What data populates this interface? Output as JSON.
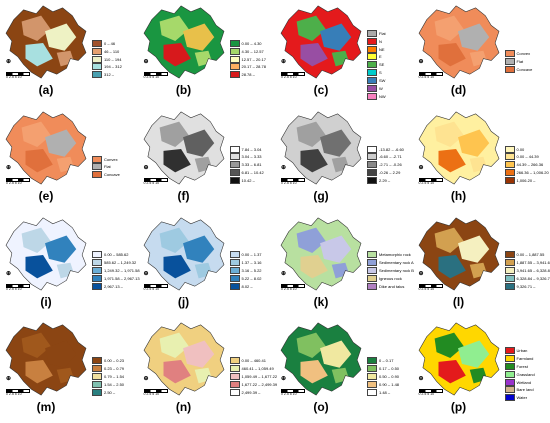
{
  "panels": [
    {
      "letter": "(a)",
      "legend": [
        {
          "label": "0 – 46",
          "color": "#a0522d"
        },
        {
          "label": "46 – 110",
          "color": "#e6a070"
        },
        {
          "label": "110 – 194",
          "color": "#eef0c8"
        },
        {
          "label": "194 – 312",
          "color": "#a8e0e0"
        },
        {
          "label": "312 –",
          "color": "#4aa0b0"
        }
      ],
      "palette": [
        "#8b4513",
        "#d2956b",
        "#eef2c4",
        "#a8e0e0"
      ]
    },
    {
      "letter": "(b)",
      "legend": [
        {
          "label": "0.00 – 4.30",
          "color": "#1a9641"
        },
        {
          "label": "4.30 – 12.57",
          "color": "#a6d96a"
        },
        {
          "label": "12.57 – 20.17",
          "color": "#ffffbf"
        },
        {
          "label": "20.17 – 28.78",
          "color": "#fdae61"
        },
        {
          "label": "28.78 –",
          "color": "#d7191c"
        }
      ],
      "palette": [
        "#1a9641",
        "#a6d96a",
        "#e8c04a",
        "#d7191c"
      ]
    },
    {
      "letter": "(c)",
      "legend": [
        {
          "label": "Flat",
          "color": "#aaaaaa"
        },
        {
          "label": "N",
          "color": "#e41a1c"
        },
        {
          "label": "NE",
          "color": "#ff7f00"
        },
        {
          "label": "E",
          "color": "#ffff33"
        },
        {
          "label": "SE",
          "color": "#4daf4a"
        },
        {
          "label": "S",
          "color": "#00cccc"
        },
        {
          "label": "SW",
          "color": "#377eb8"
        },
        {
          "label": "W",
          "color": "#984ea3"
        },
        {
          "label": "NW",
          "color": "#f781bf"
        }
      ],
      "palette": [
        "#e41a1c",
        "#4daf4a",
        "#377eb8",
        "#984ea3"
      ]
    },
    {
      "letter": "(d)",
      "legend": [
        {
          "label": "Convex",
          "color": "#f08c5a"
        },
        {
          "label": "Flat",
          "color": "#b0b0b0"
        },
        {
          "label": "Concave",
          "color": "#e0703c"
        }
      ],
      "palette": [
        "#f08c5a",
        "#f4a070",
        "#b0b0b0",
        "#e0703c"
      ]
    },
    {
      "letter": "(e)",
      "legend": [
        {
          "label": "Convex",
          "color": "#f08c5a"
        },
        {
          "label": "Flat",
          "color": "#b0b0b0"
        },
        {
          "label": "Concave",
          "color": "#e0703c"
        }
      ],
      "palette": [
        "#f08c5a",
        "#f4a070",
        "#b0b0b0",
        "#e0703c"
      ]
    },
    {
      "letter": "(f)",
      "legend": [
        {
          "label": "7.84 – 3.04",
          "color": "#ffffff"
        },
        {
          "label": "3.04 – 3.33",
          "color": "#dddddd"
        },
        {
          "label": "3.33 – 6.81",
          "color": "#999999"
        },
        {
          "label": "6.81 – 10.42",
          "color": "#555555"
        },
        {
          "label": "10.42 –",
          "color": "#111111"
        }
      ],
      "palette": [
        "#e0e0e0",
        "#a0a0a0",
        "#606060",
        "#303030"
      ]
    },
    {
      "letter": "(g)",
      "legend": [
        {
          "label": "-13.82 – -6.60",
          "color": "#ffffff"
        },
        {
          "label": "-6.60 – -2.71",
          "color": "#cccccc"
        },
        {
          "label": "-2.71 – -0.26",
          "color": "#888888"
        },
        {
          "label": "-0.26 – 2.29",
          "color": "#444444"
        },
        {
          "label": "2.29 –",
          "color": "#111111"
        }
      ],
      "palette": [
        "#d0d0d0",
        "#a0a0a0",
        "#707070",
        "#404040"
      ]
    },
    {
      "letter": "(h)",
      "legend": [
        {
          "label": "0.00",
          "color": "#fff7bc"
        },
        {
          "label": "0.00 – 44.39",
          "color": "#fee391"
        },
        {
          "label": "44.39 – 266.36",
          "color": "#fec44f"
        },
        {
          "label": "266.36 – 1,006.20",
          "color": "#ec7014"
        },
        {
          "label": "1,006.20 –",
          "color": "#993404"
        }
      ],
      "palette": [
        "#fff0a0",
        "#fee391",
        "#fec44f",
        "#ec7014"
      ]
    },
    {
      "letter": "(i)",
      "legend": [
        {
          "label": "0.00 – 585.62",
          "color": "#eff3ff"
        },
        {
          "label": "585.62 – 1,249.32",
          "color": "#bdd7e7"
        },
        {
          "label": "1,249.32 – 1,971.58",
          "color": "#6baed6"
        },
        {
          "label": "1,971.58 – 2,967.13",
          "color": "#3182bd"
        },
        {
          "label": "2,967.13 –",
          "color": "#08519c"
        }
      ],
      "palette": [
        "#eff3ff",
        "#bdd7e7",
        "#3182bd",
        "#08519c"
      ]
    },
    {
      "letter": "(j)",
      "legend": [
        {
          "label": "0.00 – 1.37",
          "color": "#c6dbef"
        },
        {
          "label": "1.37 – 3.16",
          "color": "#9ecae1"
        },
        {
          "label": "3.16 – 5.22",
          "color": "#6baed6"
        },
        {
          "label": "5.22 – 8.02",
          "color": "#3182bd"
        },
        {
          "label": "8.02 –",
          "color": "#08519c"
        }
      ],
      "palette": [
        "#c6dbef",
        "#9ecae1",
        "#3182bd",
        "#08519c"
      ]
    },
    {
      "letter": "(k)",
      "legend": [
        {
          "label": "Metamorphic rock",
          "color": "#b8e0a0"
        },
        {
          "label": "Sedimentary rock A",
          "color": "#8fa0d8"
        },
        {
          "label": "Sedimentary rock B",
          "color": "#c8c8e8"
        },
        {
          "label": "Igneous rock",
          "color": "#e0d090"
        },
        {
          "label": "Dike and talus",
          "color": "#b080c0"
        }
      ],
      "palette": [
        "#b8e0a0",
        "#8fa0d8",
        "#c8c8e8",
        "#e0d090"
      ]
    },
    {
      "letter": "(l)",
      "legend": [
        {
          "label": "0.00 – 1,887.55",
          "color": "#8b4513"
        },
        {
          "label": "1,887.55 – 3,941.65",
          "color": "#d2a050"
        },
        {
          "label": "3,941.65 – 6,328.84",
          "color": "#f5f0c0"
        },
        {
          "label": "6,328.84 – 9,326.71",
          "color": "#80c0c0"
        },
        {
          "label": "9,326.71 –",
          "color": "#2a7080"
        }
      ],
      "palette": [
        "#8b4513",
        "#d2a050",
        "#f5f0c0",
        "#2a7080"
      ]
    },
    {
      "letter": "(m)",
      "legend": [
        {
          "label": "0.00 – 0.23",
          "color": "#8b4513"
        },
        {
          "label": "0.23 – 0.79",
          "color": "#c88040"
        },
        {
          "label": "0.79 – 1.54",
          "color": "#f0e0a0"
        },
        {
          "label": "1.54 – 2.50",
          "color": "#80c0b0"
        },
        {
          "label": "2.50 –",
          "color": "#2a8080"
        }
      ],
      "palette": [
        "#8b4513",
        "#a0581c",
        "#8b4513",
        "#c88040"
      ]
    },
    {
      "letter": "(n)",
      "legend": [
        {
          "label": "0.00 – 460.41",
          "color": "#f0d080"
        },
        {
          "label": "460.41 – 1,059.49",
          "color": "#e8f0b0"
        },
        {
          "label": "1,059.49 – 1,677.22",
          "color": "#f0c0c0"
        },
        {
          "label": "1,677.22 – 2,499.39",
          "color": "#e08080"
        },
        {
          "label": "2,499.39 –",
          "color": "#ffffff"
        }
      ],
      "palette": [
        "#f0d080",
        "#e8f0b0",
        "#f0c0c0",
        "#e08080"
      ]
    },
    {
      "letter": "(o)",
      "legend": [
        {
          "label": "0 – 0.17",
          "color": "#1a8040"
        },
        {
          "label": "0.17 – 0.50",
          "color": "#80c060"
        },
        {
          "label": "0.50 – 0.90",
          "color": "#f0e8a0"
        },
        {
          "label": "0.90 – 1.48",
          "color": "#f0c080"
        },
        {
          "label": "1.48 –",
          "color": "#ffffff"
        }
      ],
      "palette": [
        "#1a8040",
        "#80c060",
        "#f0e8a0",
        "#f0c080"
      ]
    },
    {
      "letter": "(p)",
      "legend": [
        {
          "label": "Urban",
          "color": "#e31a1c"
        },
        {
          "label": "Farmland",
          "color": "#ffd700"
        },
        {
          "label": "Forest",
          "color": "#228b22"
        },
        {
          "label": "Grassland",
          "color": "#90ee90"
        },
        {
          "label": "Wetland",
          "color": "#9932cc"
        },
        {
          "label": "Bare land",
          "color": "#d2b48c"
        },
        {
          "label": "Water",
          "color": "#0000cd"
        }
      ],
      "palette": [
        "#ffd700",
        "#228b22",
        "#90ee90",
        "#e31a1c"
      ]
    }
  ],
  "scale_text": "0 2.5 5      10",
  "north_label": "N"
}
